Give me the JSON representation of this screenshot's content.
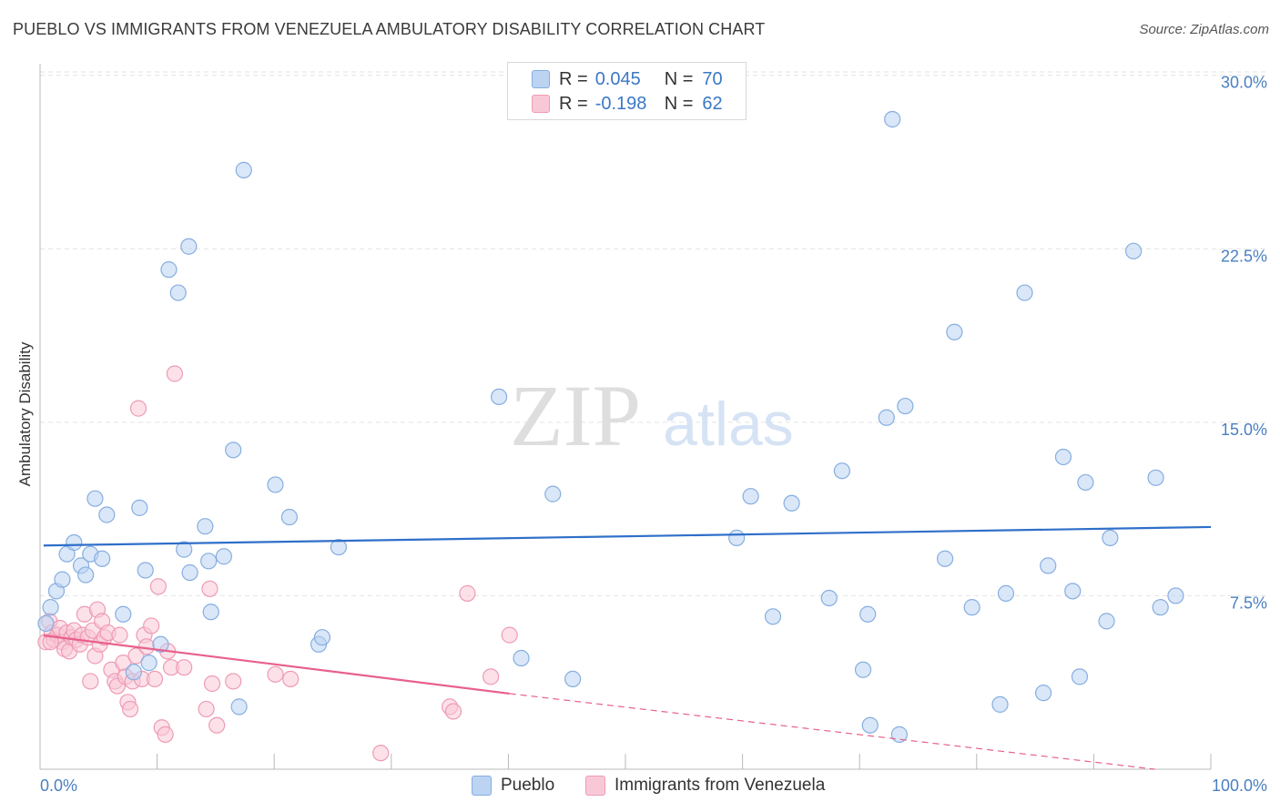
{
  "title": "PUEBLO VS IMMIGRANTS FROM VENEZUELA AMBULATORY DISABILITY CORRELATION CHART",
  "source": "Source: ZipAtlas.com",
  "watermark": {
    "zip": "ZIP",
    "atlas": "atlas"
  },
  "legend_top": {
    "rows": [
      {
        "r_label": "R =",
        "r_value": "0.045",
        "n_label": "N =",
        "n_value": "70"
      },
      {
        "r_label": "R =",
        "r_value": "-0.198",
        "n_label": "N =",
        "n_value": "62"
      }
    ]
  },
  "legend_bottom": {
    "series1": "Pueblo",
    "series2": "Immigrants from Venezuela"
  },
  "colors": {
    "pueblo_fill": "#bcd4f2",
    "pueblo_stroke": "#86aee0",
    "pueblo_line": "#2f6fc9",
    "venezuela_fill": "#f9c8d7",
    "venezuela_stroke": "#ee9bb5",
    "venezuela_line": "#e8608b",
    "tick_label": "#4a7fc1",
    "grid": "#e3e3e3"
  },
  "chart_data": {
    "type": "scatter",
    "xlabel": "",
    "ylabel": "Ambulatory Disability",
    "xlim": [
      0,
      100
    ],
    "ylim": [
      0,
      30.5
    ],
    "x_tick_labels": [
      {
        "value": 0,
        "label": "0.0%"
      },
      {
        "value": 100,
        "label": "100.0%"
      }
    ],
    "y_ticks": [
      {
        "value": 7.5,
        "label": "7.5%"
      },
      {
        "value": 15.0,
        "label": "15.0%"
      },
      {
        "value": 22.5,
        "label": "22.5%"
      },
      {
        "value": 30.0,
        "label": "30.0%"
      }
    ],
    "grid": true,
    "series": [
      {
        "name": "Pueblo",
        "R": 0.045,
        "N": 70,
        "trend": {
          "x0": 0.3,
          "y0": 9.67,
          "x1": 100,
          "y1": 10.47
        },
        "points": [
          [
            0.5,
            6.3
          ],
          [
            0.9,
            7.0
          ],
          [
            1.4,
            7.7
          ],
          [
            1.9,
            8.2
          ],
          [
            2.3,
            9.3
          ],
          [
            2.9,
            9.8
          ],
          [
            3.5,
            8.8
          ],
          [
            3.9,
            8.4
          ],
          [
            4.3,
            9.3
          ],
          [
            4.7,
            11.7
          ],
          [
            5.3,
            9.1
          ],
          [
            5.7,
            11.0
          ],
          [
            7.1,
            6.7
          ],
          [
            8.0,
            4.2
          ],
          [
            8.5,
            11.3
          ],
          [
            9.0,
            8.6
          ],
          [
            9.3,
            4.6
          ],
          [
            10.3,
            5.4
          ],
          [
            11.0,
            21.6
          ],
          [
            11.8,
            20.6
          ],
          [
            12.3,
            9.5
          ],
          [
            12.7,
            22.6
          ],
          [
            12.8,
            8.5
          ],
          [
            14.1,
            10.5
          ],
          [
            14.4,
            9.0
          ],
          [
            14.6,
            6.8
          ],
          [
            15.7,
            9.2
          ],
          [
            16.5,
            13.8
          ],
          [
            17.0,
            2.7
          ],
          [
            17.4,
            25.9
          ],
          [
            20.1,
            12.3
          ],
          [
            21.3,
            10.9
          ],
          [
            23.8,
            5.4
          ],
          [
            24.1,
            5.7
          ],
          [
            25.5,
            9.6
          ],
          [
            39.2,
            16.1
          ],
          [
            41.1,
            4.8
          ],
          [
            43.8,
            11.9
          ],
          [
            45.5,
            3.9
          ],
          [
            59.5,
            10.0
          ],
          [
            60.7,
            11.8
          ],
          [
            62.6,
            6.6
          ],
          [
            64.2,
            11.5
          ],
          [
            67.4,
            7.4
          ],
          [
            68.5,
            12.9
          ],
          [
            70.3,
            4.3
          ],
          [
            70.7,
            6.7
          ],
          [
            70.9,
            1.9
          ],
          [
            72.3,
            15.2
          ],
          [
            72.8,
            28.1
          ],
          [
            73.4,
            1.5
          ],
          [
            73.9,
            15.7
          ],
          [
            77.3,
            9.1
          ],
          [
            78.1,
            18.9
          ],
          [
            79.6,
            7.0
          ],
          [
            82.0,
            2.8
          ],
          [
            82.5,
            7.6
          ],
          [
            84.1,
            20.6
          ],
          [
            85.7,
            3.3
          ],
          [
            86.1,
            8.8
          ],
          [
            87.4,
            13.5
          ],
          [
            88.2,
            7.7
          ],
          [
            88.8,
            4.0
          ],
          [
            89.3,
            12.4
          ],
          [
            91.1,
            6.4
          ],
          [
            91.4,
            10.0
          ],
          [
            93.4,
            22.4
          ],
          [
            95.3,
            12.6
          ],
          [
            95.7,
            7.0
          ],
          [
            97.0,
            7.5
          ]
        ]
      },
      {
        "name": "Immigrants from Venezuela",
        "R": -0.198,
        "N": 62,
        "trend": {
          "x0": 0.3,
          "y0": 5.78,
          "x1": 40.1,
          "y1": 3.27
        },
        "trend_dashed": {
          "x0": 40.1,
          "y0": 3.27,
          "x1": 95.2,
          "y1": 0
        },
        "points": [
          [
            0.5,
            5.5
          ],
          [
            0.8,
            6.4
          ],
          [
            1.0,
            5.9
          ],
          [
            1.2,
            5.6
          ],
          [
            1.5,
            5.8
          ],
          [
            1.7,
            6.1
          ],
          [
            1.9,
            5.5
          ],
          [
            2.1,
            5.2
          ],
          [
            2.3,
            5.9
          ],
          [
            2.5,
            5.1
          ],
          [
            2.7,
            5.7
          ],
          [
            2.9,
            6.0
          ],
          [
            3.1,
            5.6
          ],
          [
            3.4,
            5.4
          ],
          [
            3.6,
            5.8
          ],
          [
            3.8,
            6.7
          ],
          [
            4.1,
            5.7
          ],
          [
            4.3,
            3.8
          ],
          [
            4.5,
            6.0
          ],
          [
            4.7,
            4.9
          ],
          [
            4.9,
            6.9
          ],
          [
            5.1,
            5.4
          ],
          [
            5.3,
            6.4
          ],
          [
            5.5,
            5.7
          ],
          [
            5.8,
            5.9
          ],
          [
            6.1,
            4.3
          ],
          [
            6.4,
            3.8
          ],
          [
            6.6,
            3.6
          ],
          [
            6.8,
            5.8
          ],
          [
            7.1,
            4.6
          ],
          [
            7.3,
            4.0
          ],
          [
            7.5,
            2.9
          ],
          [
            7.7,
            2.6
          ],
          [
            7.9,
            3.8
          ],
          [
            8.2,
            4.9
          ],
          [
            8.4,
            15.6
          ],
          [
            8.7,
            3.9
          ],
          [
            8.9,
            5.8
          ],
          [
            9.1,
            5.3
          ],
          [
            9.5,
            6.2
          ],
          [
            9.8,
            3.9
          ],
          [
            10.1,
            7.9
          ],
          [
            10.4,
            1.8
          ],
          [
            10.7,
            1.5
          ],
          [
            10.9,
            5.1
          ],
          [
            11.2,
            4.4
          ],
          [
            11.5,
            17.1
          ],
          [
            12.3,
            4.4
          ],
          [
            14.2,
            2.6
          ],
          [
            14.5,
            7.8
          ],
          [
            14.7,
            3.7
          ],
          [
            15.1,
            1.9
          ],
          [
            16.5,
            3.8
          ],
          [
            20.1,
            4.1
          ],
          [
            21.4,
            3.9
          ],
          [
            29.1,
            0.7
          ],
          [
            35.0,
            2.7
          ],
          [
            35.3,
            2.5
          ],
          [
            36.5,
            7.6
          ],
          [
            38.5,
            4.0
          ],
          [
            40.1,
            5.8
          ],
          [
            0.9,
            5.5
          ]
        ]
      }
    ]
  }
}
